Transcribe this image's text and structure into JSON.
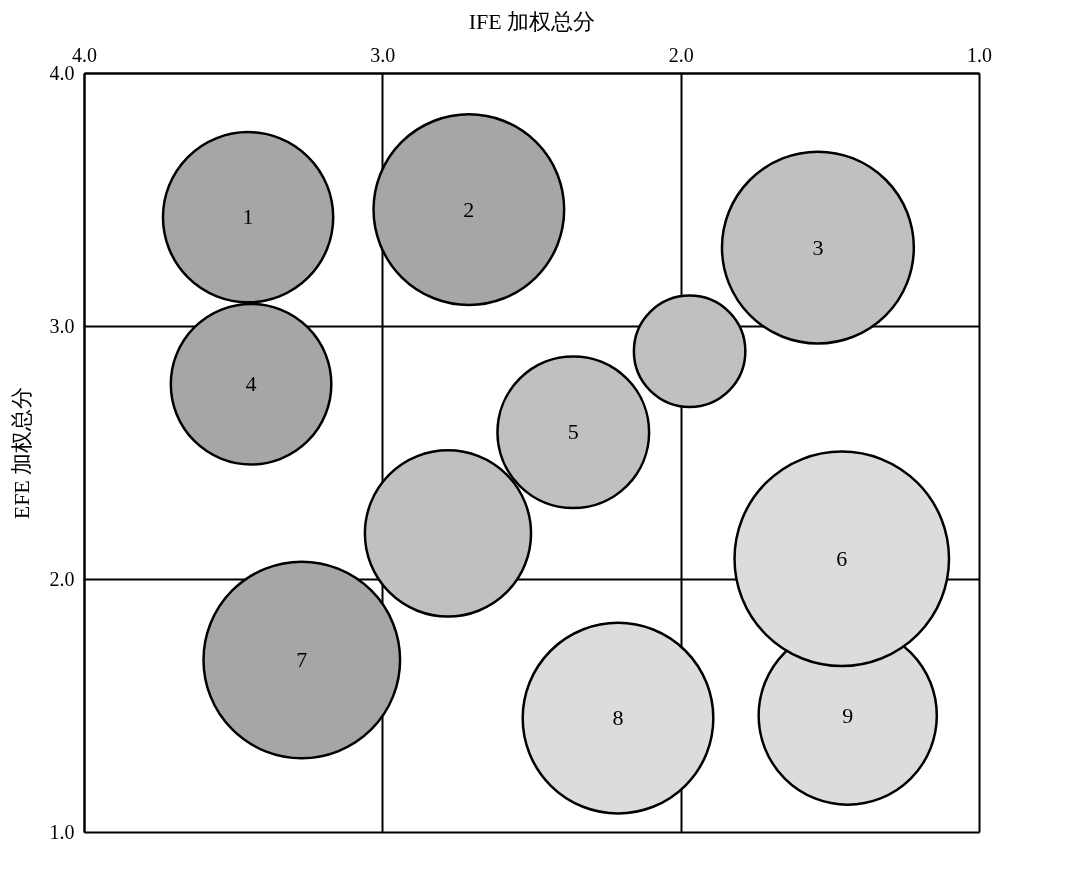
{
  "chart_data": {
    "type": "bubble",
    "xlabel": "IFE 加权总分",
    "ylabel": "EFE 加权总分",
    "xlim": [
      4.0,
      1.0
    ],
    "ylim": [
      1.0,
      4.0
    ],
    "xticks": [
      {
        "value": 4,
        "label": "4.0"
      },
      {
        "value": 3,
        "label": "3.0"
      },
      {
        "value": 2,
        "label": "2.0"
      },
      {
        "value": 1,
        "label": "1.0"
      }
    ],
    "yticks": [
      {
        "value": 1,
        "label": "1.0"
      },
      {
        "value": 2,
        "label": "2.0"
      },
      {
        "value": 3,
        "label": "3.0"
      },
      {
        "value": 4,
        "label": "4.0"
      }
    ],
    "grid": true,
    "legend": false,
    "x": [
      1.97,
      1.44,
      2.78,
      3.45,
      2.71,
      1.54,
      3.44,
      2.36,
      1.46,
      3.27,
      2.21
    ],
    "values": [
      2.9,
      1.46,
      2.18,
      3.43,
      3.46,
      3.31,
      2.77,
      2.58,
      2.08,
      1.68,
      1.45
    ],
    "sizes": [
      0.27,
      0.69,
      0.6,
      0.63,
      0.79,
      0.8,
      0.56,
      0.5,
      1,
      0.84,
      0.79
    ],
    "colors": [
      "#c0c0c0",
      "#dcdcdc",
      "#c0c0c0",
      "#a6a6a6",
      "#a6a6a6",
      "#c0c0c0",
      "#a6a6a6",
      "#c0c0c0",
      "#dcdcdc",
      "#a6a6a6",
      "#dcdcdc"
    ],
    "annotations": [
      {
        "text": "1",
        "x": 3.45,
        "y": 3.43
      },
      {
        "text": "2",
        "x": 2.71,
        "y": 3.46
      },
      {
        "text": "3",
        "x": 1.54,
        "y": 3.31
      },
      {
        "text": "4",
        "x": 3.44,
        "y": 2.77
      },
      {
        "text": "5",
        "x": 2.36,
        "y": 2.58
      },
      {
        "text": "6",
        "x": 1.46,
        "y": 2.08
      },
      {
        "text": "7",
        "x": 3.27,
        "y": 1.68
      },
      {
        "text": "8",
        "x": 2.21,
        "y": 1.45
      },
      {
        "text": "9",
        "x": 1.44,
        "y": 1.46
      }
    ]
  }
}
